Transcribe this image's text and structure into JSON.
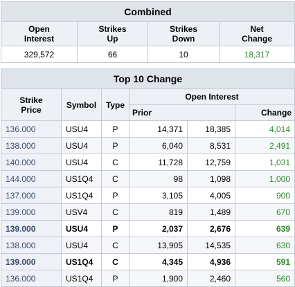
{
  "combined": {
    "title": "Combined",
    "headers": [
      "Open\nInterest",
      "Strikes\nUp",
      "Strikes\nDown",
      "Net\nChange"
    ],
    "values": [
      "329,572",
      "66",
      "10",
      "18,317"
    ]
  },
  "top10": {
    "title": "Top 10 Change",
    "headers": {
      "strike_price": "Strike\nPrice",
      "symbol": "Symbol",
      "type": "Type",
      "open_interest": "Open Interest",
      "prior": "Prior",
      "change": "Change"
    },
    "rows": [
      {
        "strike": "136.000",
        "symbol": "USU4",
        "type": "P",
        "prior": "14,371",
        "current": "18,385",
        "change": "4,014",
        "bold": false
      },
      {
        "strike": "138.000",
        "symbol": "USU4",
        "type": "P",
        "prior": "6,040",
        "current": "8,531",
        "change": "2,491",
        "bold": false
      },
      {
        "strike": "140.000",
        "symbol": "USU4",
        "type": "C",
        "prior": "11,728",
        "current": "12,759",
        "change": "1,031",
        "bold": false
      },
      {
        "strike": "144.000",
        "symbol": "US1Q4",
        "type": "C",
        "prior": "98",
        "current": "1,098",
        "change": "1,000",
        "bold": false
      },
      {
        "strike": "137.000",
        "symbol": "US1Q4",
        "type": "P",
        "prior": "3,105",
        "current": "4,005",
        "change": "900",
        "bold": false
      },
      {
        "strike": "139.000",
        "symbol": "USV4",
        "type": "C",
        "prior": "819",
        "current": "1,489",
        "change": "670",
        "bold": false
      },
      {
        "strike": "139.000",
        "symbol": "USU4",
        "type": "P",
        "prior": "2,037",
        "current": "2,676",
        "change": "639",
        "bold": true
      },
      {
        "strike": "138.000",
        "symbol": "USU4",
        "type": "C",
        "prior": "13,905",
        "current": "14,535",
        "change": "630",
        "bold": false
      },
      {
        "strike": "139.000",
        "symbol": "US1Q4",
        "type": "C",
        "prior": "4,345",
        "current": "4,936",
        "change": "591",
        "bold": true
      },
      {
        "strike": "136.000",
        "symbol": "US1Q4",
        "type": "P",
        "prior": "1,900",
        "current": "2,460",
        "change": "560",
        "bold": false
      }
    ]
  },
  "colors": {
    "positive_change": "#2a8a2a",
    "title_bg": "#dfe3ea",
    "header_bg": "#edf0f5",
    "strike_bg": "#eef1f7"
  }
}
